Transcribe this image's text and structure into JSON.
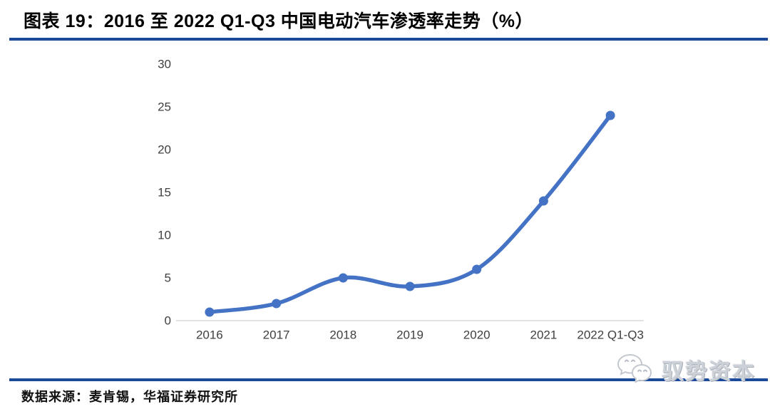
{
  "header": {
    "title": "图表 19：2016 至 2022 Q1-Q3 中国电动汽车渗透率走势（%）"
  },
  "chart_data": {
    "type": "line",
    "title": "2016 至 2022 Q1-Q3 中国电动汽车渗透率走势（%）",
    "categories": [
      "2016",
      "2017",
      "2018",
      "2019",
      "2020",
      "2021",
      "2022 Q1-Q3"
    ],
    "values": [
      1,
      2,
      5,
      4,
      6,
      14,
      24
    ],
    "xlabel": "",
    "ylabel": "",
    "ylim": [
      0,
      30
    ],
    "yticks": [
      0,
      5,
      10,
      15,
      20,
      25,
      30
    ],
    "grid": false,
    "legend": "none",
    "smooth": true,
    "marker": "circle",
    "line_color": "#4472C4"
  },
  "footer": {
    "source": "数据来源：麦肯锡，华福证券研究所"
  },
  "watermark": {
    "text": "驭势资本",
    "icon": "wechat-bubbles-icon",
    "color": "#C6CBD4"
  },
  "colors": {
    "accent_rule": "#1B4A9B",
    "axis_line": "#D9D9D9",
    "tick_text": "#404040"
  }
}
